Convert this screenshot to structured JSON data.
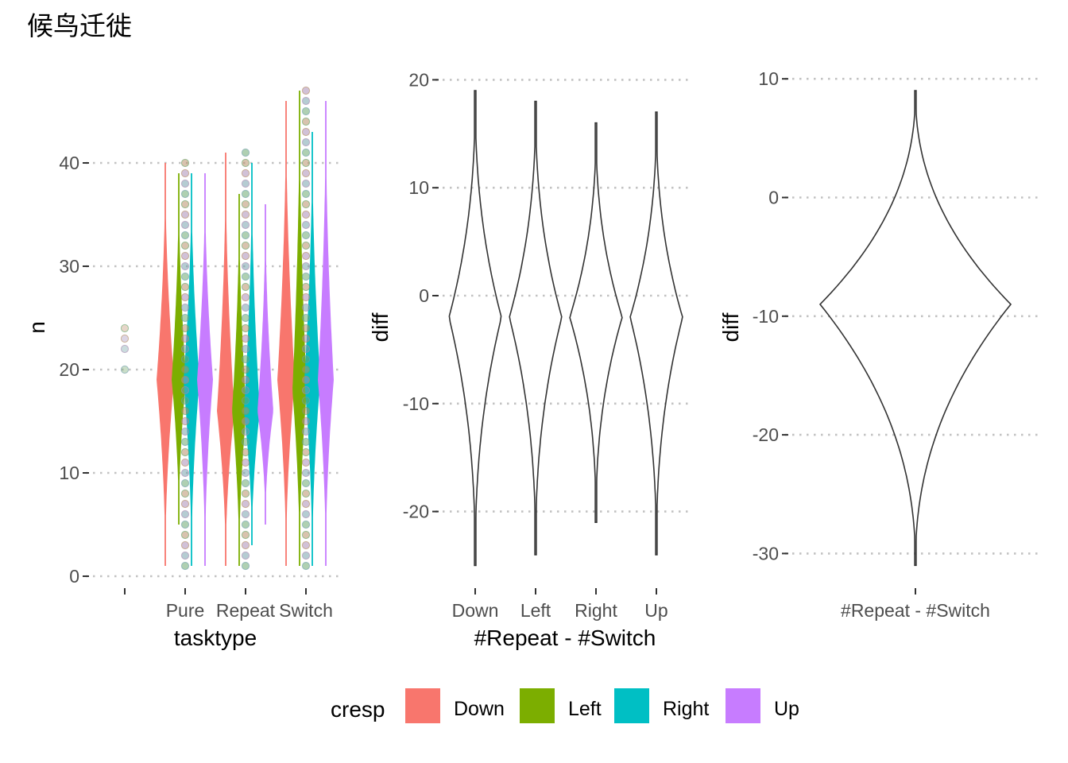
{
  "title": "候鸟迁徙",
  "colors": {
    "Down": "#F8766D",
    "Left": "#7CAE00",
    "Right": "#00BFC4",
    "Up": "#C77CFF",
    "outline": "#333333"
  },
  "legend": {
    "title": "cresp",
    "items": [
      {
        "label": "Down",
        "color": "#F8766D"
      },
      {
        "label": "Left",
        "color": "#7CAE00"
      },
      {
        "label": "Right",
        "color": "#00BFC4"
      },
      {
        "label": "Up",
        "color": "#C77CFF"
      }
    ]
  },
  "chart_data": [
    {
      "type": "violin",
      "xlabel": "tasktype",
      "ylabel": "n",
      "categories": [
        "",
        "Pure",
        "Repeat",
        "Switch"
      ],
      "ylim": [
        0,
        48
      ],
      "yticks": [
        0,
        10,
        20,
        30,
        40
      ],
      "grid": "horizontal dotted",
      "series": [
        {
          "name": "Down",
          "groups": [
            {
              "category": "Pure",
              "min": 1,
              "max": 40,
              "center": 19
            },
            {
              "category": "Repeat",
              "min": 1,
              "max": 41,
              "center": 16
            },
            {
              "category": "Switch",
              "min": 1,
              "max": 46,
              "center": 19
            }
          ]
        },
        {
          "name": "Left",
          "groups": [
            {
              "category": "Pure",
              "min": 5,
              "max": 39,
              "center": 19
            },
            {
              "category": "Repeat",
              "min": 1,
              "max": 37,
              "center": 16
            },
            {
              "category": "Switch",
              "min": 1,
              "max": 47,
              "center": 18
            }
          ]
        },
        {
          "name": "Right",
          "groups": [
            {
              "category": "Pure",
              "min": 1,
              "max": 39,
              "center": 19
            },
            {
              "category": "Repeat",
              "min": 3,
              "max": 40,
              "center": 16
            },
            {
              "category": "Switch",
              "min": 1,
              "max": 43,
              "center": 19
            }
          ]
        },
        {
          "name": "Up",
          "groups": [
            {
              "category": "Pure",
              "min": 1,
              "max": 39,
              "center": 19
            },
            {
              "category": "Repeat",
              "min": 5,
              "max": 36,
              "center": 16
            },
            {
              "category": "Switch",
              "min": 1,
              "max": 46,
              "center": 19
            }
          ]
        }
      ],
      "points": [
        {
          "category": "",
          "values": [
            20,
            22,
            23,
            24
          ]
        },
        {
          "category": "Pure",
          "range": [
            1,
            40
          ]
        },
        {
          "category": "Repeat",
          "range": [
            1,
            41
          ]
        },
        {
          "category": "Switch",
          "range": [
            1,
            47
          ]
        }
      ]
    },
    {
      "type": "violin",
      "xlabel": "#Repeat - #Switch",
      "ylabel": "diff",
      "categories": [
        "Down",
        "Left",
        "Right",
        "Up"
      ],
      "ylim": [
        -26,
        21
      ],
      "yticks": [
        -20,
        -10,
        0,
        10,
        20
      ],
      "grid": "horizontal dotted",
      "violins": [
        {
          "category": "Down",
          "min": -25,
          "max": 19,
          "center": -2
        },
        {
          "category": "Left",
          "min": -24,
          "max": 18,
          "center": -2
        },
        {
          "category": "Right",
          "min": -21,
          "max": 16,
          "center": -2
        },
        {
          "category": "Up",
          "min": -24,
          "max": 17,
          "center": -2
        }
      ]
    },
    {
      "type": "violin",
      "xlabel": "",
      "ylabel": "diff",
      "categories": [
        "#Repeat - #Switch"
      ],
      "ylim": [
        -32,
        11
      ],
      "yticks": [
        -30,
        -20,
        -10,
        0,
        10
      ],
      "grid": "horizontal dotted",
      "violins": [
        {
          "category": "#Repeat - #Switch",
          "min": -31,
          "max": 9,
          "center": -9
        }
      ]
    }
  ]
}
